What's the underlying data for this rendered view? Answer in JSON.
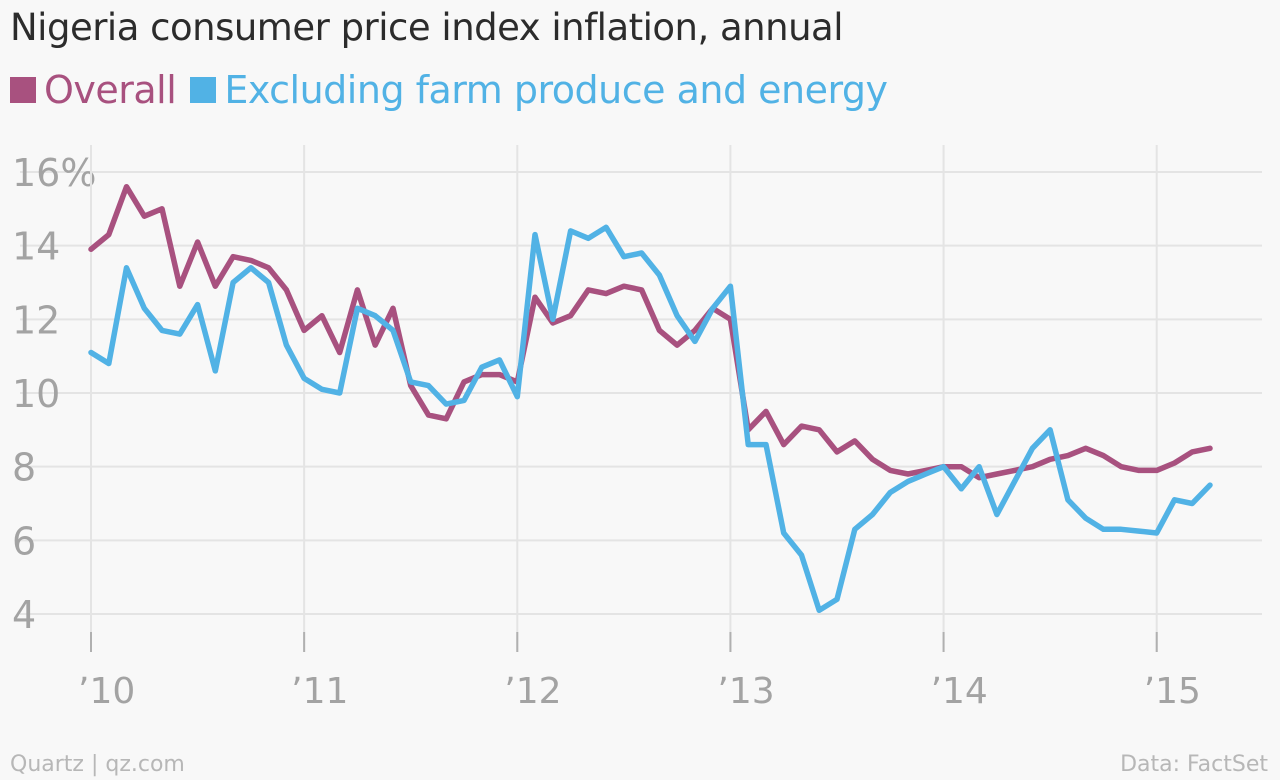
{
  "chart_data": {
    "type": "line",
    "title": "Nigeria consumer price index inflation, annual",
    "xlabel": "",
    "ylabel": "",
    "x_tick_labels": [
      "’10",
      "’11",
      "’12",
      "’13",
      "’14",
      "’15"
    ],
    "x_ticks": [
      2010,
      2011,
      2012,
      2013,
      2014,
      2015
    ],
    "xlim": [
      2010,
      2015.25
    ],
    "y_ticks": [
      4,
      6,
      8,
      10,
      12,
      14,
      16
    ],
    "y_tick_labels": [
      "4",
      "6",
      "8",
      "10",
      "12",
      "14",
      "16%"
    ],
    "ylim": [
      3.3,
      16.5
    ],
    "grid": true,
    "legend_position": "top-left",
    "series": [
      {
        "name": "Overall",
        "color": "#a8517f",
        "x": [
          2010.0,
          2010.0833,
          2010.1667,
          2010.25,
          2010.3333,
          2010.4167,
          2010.5,
          2010.5833,
          2010.6667,
          2010.75,
          2010.8333,
          2010.9167,
          2011.0,
          2011.0833,
          2011.1667,
          2011.25,
          2011.3333,
          2011.4167,
          2011.5,
          2011.5833,
          2011.6667,
          2011.75,
          2011.8333,
          2011.9167,
          2012.0,
          2012.0833,
          2012.1667,
          2012.25,
          2012.3333,
          2012.4167,
          2012.5,
          2012.5833,
          2012.6667,
          2012.75,
          2012.8333,
          2012.9167,
          2013.0,
          2013.0833,
          2013.1667,
          2013.25,
          2013.3333,
          2013.4167,
          2013.5,
          2013.5833,
          2013.6667,
          2013.75,
          2013.8333,
          2013.9167,
          2014.0,
          2014.0833,
          2014.1667,
          2014.25,
          2014.3333,
          2014.4167,
          2014.5,
          2014.5833,
          2014.6667,
          2014.75,
          2014.8333,
          2014.9167,
          2015.0,
          2015.0833,
          2015.1667,
          2015.25
        ],
        "values": [
          13.9,
          14.3,
          15.6,
          14.8,
          15.0,
          12.9,
          14.1,
          12.9,
          13.7,
          13.6,
          13.4,
          12.8,
          11.7,
          12.1,
          11.1,
          12.8,
          11.3,
          12.3,
          10.2,
          9.4,
          9.3,
          10.3,
          10.5,
          10.5,
          10.3,
          12.6,
          11.9,
          12.1,
          12.8,
          12.7,
          12.9,
          12.8,
          11.7,
          11.3,
          11.7,
          12.3,
          12.0,
          9.0,
          9.5,
          8.6,
          9.1,
          9.0,
          8.4,
          8.7,
          8.2,
          7.9,
          7.8,
          7.9,
          8.0,
          8.0,
          7.7,
          7.8,
          7.9,
          8.0,
          8.2,
          8.3,
          8.5,
          8.3,
          8.0,
          7.9,
          7.9,
          8.1,
          8.4,
          8.5
        ]
      },
      {
        "name": "Excluding farm produce and energy",
        "color": "#51b2e5",
        "x": [
          2010.0,
          2010.0833,
          2010.1667,
          2010.25,
          2010.3333,
          2010.4167,
          2010.5,
          2010.5833,
          2010.6667,
          2010.75,
          2010.8333,
          2010.9167,
          2011.0,
          2011.0833,
          2011.1667,
          2011.25,
          2011.3333,
          2011.4167,
          2011.5,
          2011.5833,
          2011.6667,
          2011.75,
          2011.8333,
          2011.9167,
          2012.0,
          2012.0833,
          2012.1667,
          2012.25,
          2012.3333,
          2012.4167,
          2012.5,
          2012.5833,
          2012.6667,
          2012.75,
          2012.8333,
          2012.9167,
          2013.0,
          2013.0833,
          2013.1667,
          2013.25,
          2013.3333,
          2013.4167,
          2013.5,
          2013.5833,
          2013.6667,
          2013.75,
          2013.8333,
          2013.9167,
          2014.0,
          2014.0833,
          2014.1667,
          2014.25,
          2014.3333,
          2014.4167,
          2014.5,
          2014.5833,
          2014.6667,
          2014.75,
          2014.8333,
          2014.9167,
          2015.0,
          2015.0833,
          2015.1667,
          2015.25
        ],
        "values": [
          11.1,
          10.8,
          13.4,
          12.3,
          11.7,
          11.6,
          12.4,
          10.6,
          13.0,
          13.4,
          13.0,
          11.3,
          10.4,
          10.1,
          10.0,
          12.3,
          12.1,
          11.7,
          10.3,
          10.2,
          9.7,
          9.8,
          10.7,
          10.9,
          9.9,
          14.3,
          12.0,
          14.4,
          14.2,
          14.5,
          13.7,
          13.8,
          13.2,
          12.1,
          11.4,
          12.3,
          12.9,
          8.6,
          8.6,
          6.2,
          5.6,
          4.1,
          4.4,
          6.3,
          6.7,
          7.3,
          7.6,
          7.8,
          8.0,
          7.4,
          8.0,
          6.7,
          7.6,
          8.5,
          9.0,
          7.1,
          6.6,
          6.3,
          6.3,
          6.25,
          6.2,
          7.1,
          7.0,
          7.5
        ]
      }
    ]
  },
  "footer": {
    "source_left": "Quartz | qz.com",
    "source_right": "Data: FactSet"
  }
}
